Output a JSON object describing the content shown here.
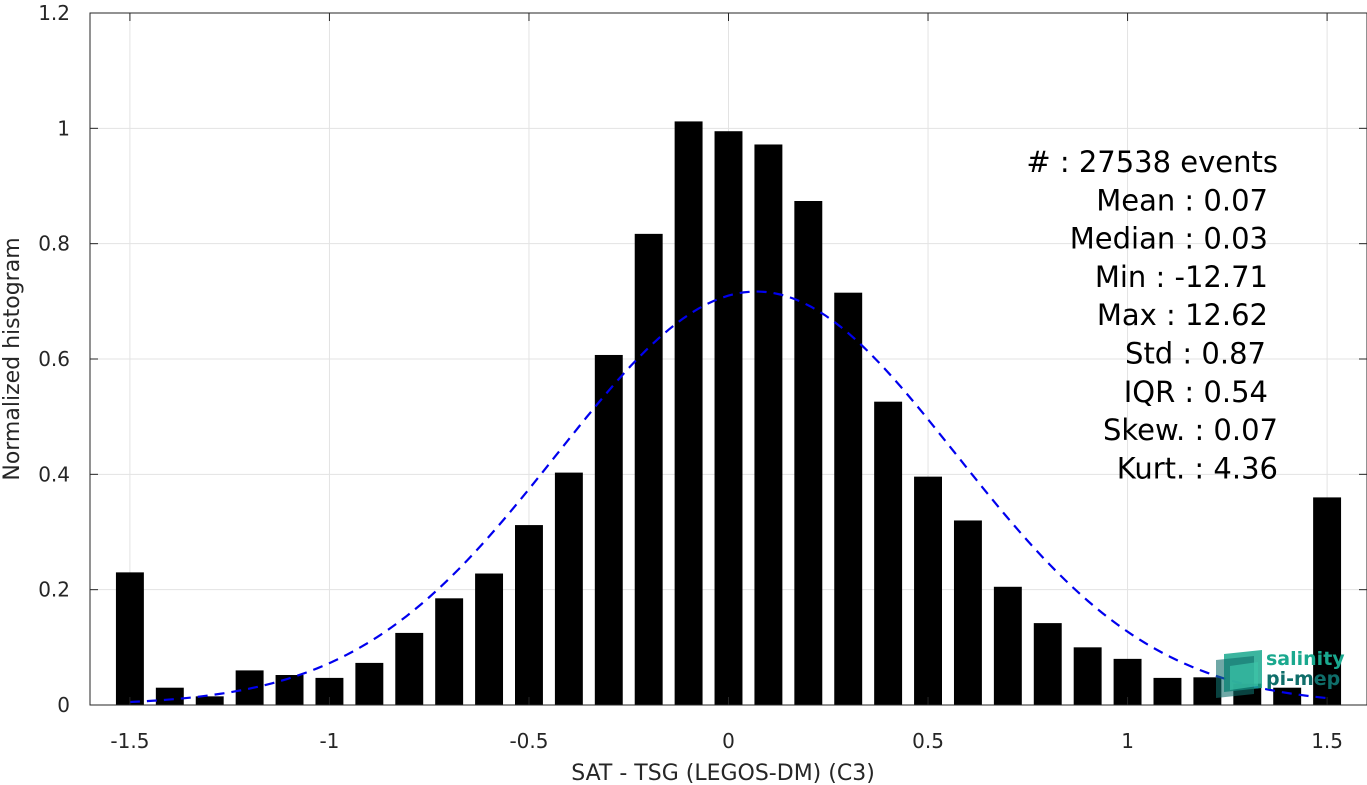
{
  "chart_data": {
    "type": "bar",
    "xlabel": "SAT - TSG (LEGOS-DM) (C3)",
    "ylabel": "Normalized histogram",
    "xlim": [
      -1.6,
      1.6
    ],
    "ylim": [
      0,
      1.2
    ],
    "grid": true,
    "x_ticks": [
      -1.5,
      -1,
      -0.5,
      0,
      0.5,
      1,
      1.5
    ],
    "x_tick_labels": [
      "-1.5",
      "-1",
      "-0.5",
      "0",
      "0.5",
      "1",
      "1.5"
    ],
    "y_ticks": [
      0,
      0.2,
      0.4,
      0.6,
      0.8,
      1,
      1.2
    ],
    "y_tick_labels": [
      "0",
      "0.2",
      "0.4",
      "0.6",
      "0.8",
      "1",
      "1.2"
    ],
    "bar_color": "#000000",
    "bar_width": 0.07,
    "bins": {
      "x": [
        -1.5,
        -1.4,
        -1.3,
        -1.2,
        -1.1,
        -1.0,
        -0.9,
        -0.8,
        -0.7,
        -0.6,
        -0.5,
        -0.4,
        -0.3,
        -0.2,
        -0.1,
        0.0,
        0.1,
        0.2,
        0.3,
        0.4,
        0.5,
        0.6,
        0.7,
        0.8,
        0.9,
        1.0,
        1.1,
        1.2,
        1.3,
        1.4,
        1.5
      ],
      "values": [
        0.23,
        0.03,
        0.015,
        0.06,
        0.052,
        0.047,
        0.073,
        0.125,
        0.185,
        0.228,
        0.312,
        0.403,
        0.607,
        0.817,
        1.012,
        0.995,
        0.972,
        0.874,
        0.715,
        0.526,
        0.396,
        0.32,
        0.205,
        0.142,
        0.1,
        0.08,
        0.047,
        0.048,
        0.037,
        0.03,
        0.36
      ]
    },
    "fit_curve": {
      "type": "gaussian",
      "mean": 0.07,
      "std": 0.5,
      "peak": 0.717,
      "x_range": [
        -1.5,
        1.5
      ],
      "color": "#0000ee",
      "style": "dashed"
    },
    "stats": [
      "#  : 27538 events",
      "Mean : 0.07",
      "Median : 0.03",
      "Min : -12.71",
      "Max : 12.62",
      "Std : 0.87",
      "IQR : 0.54",
      "Skew. : 0.07",
      "Kurt. : 4.36"
    ]
  },
  "logo": {
    "line1": "salinity",
    "line2": "pi-mep",
    "color1": "#1aa88e",
    "color2": "#0f6e6a"
  }
}
